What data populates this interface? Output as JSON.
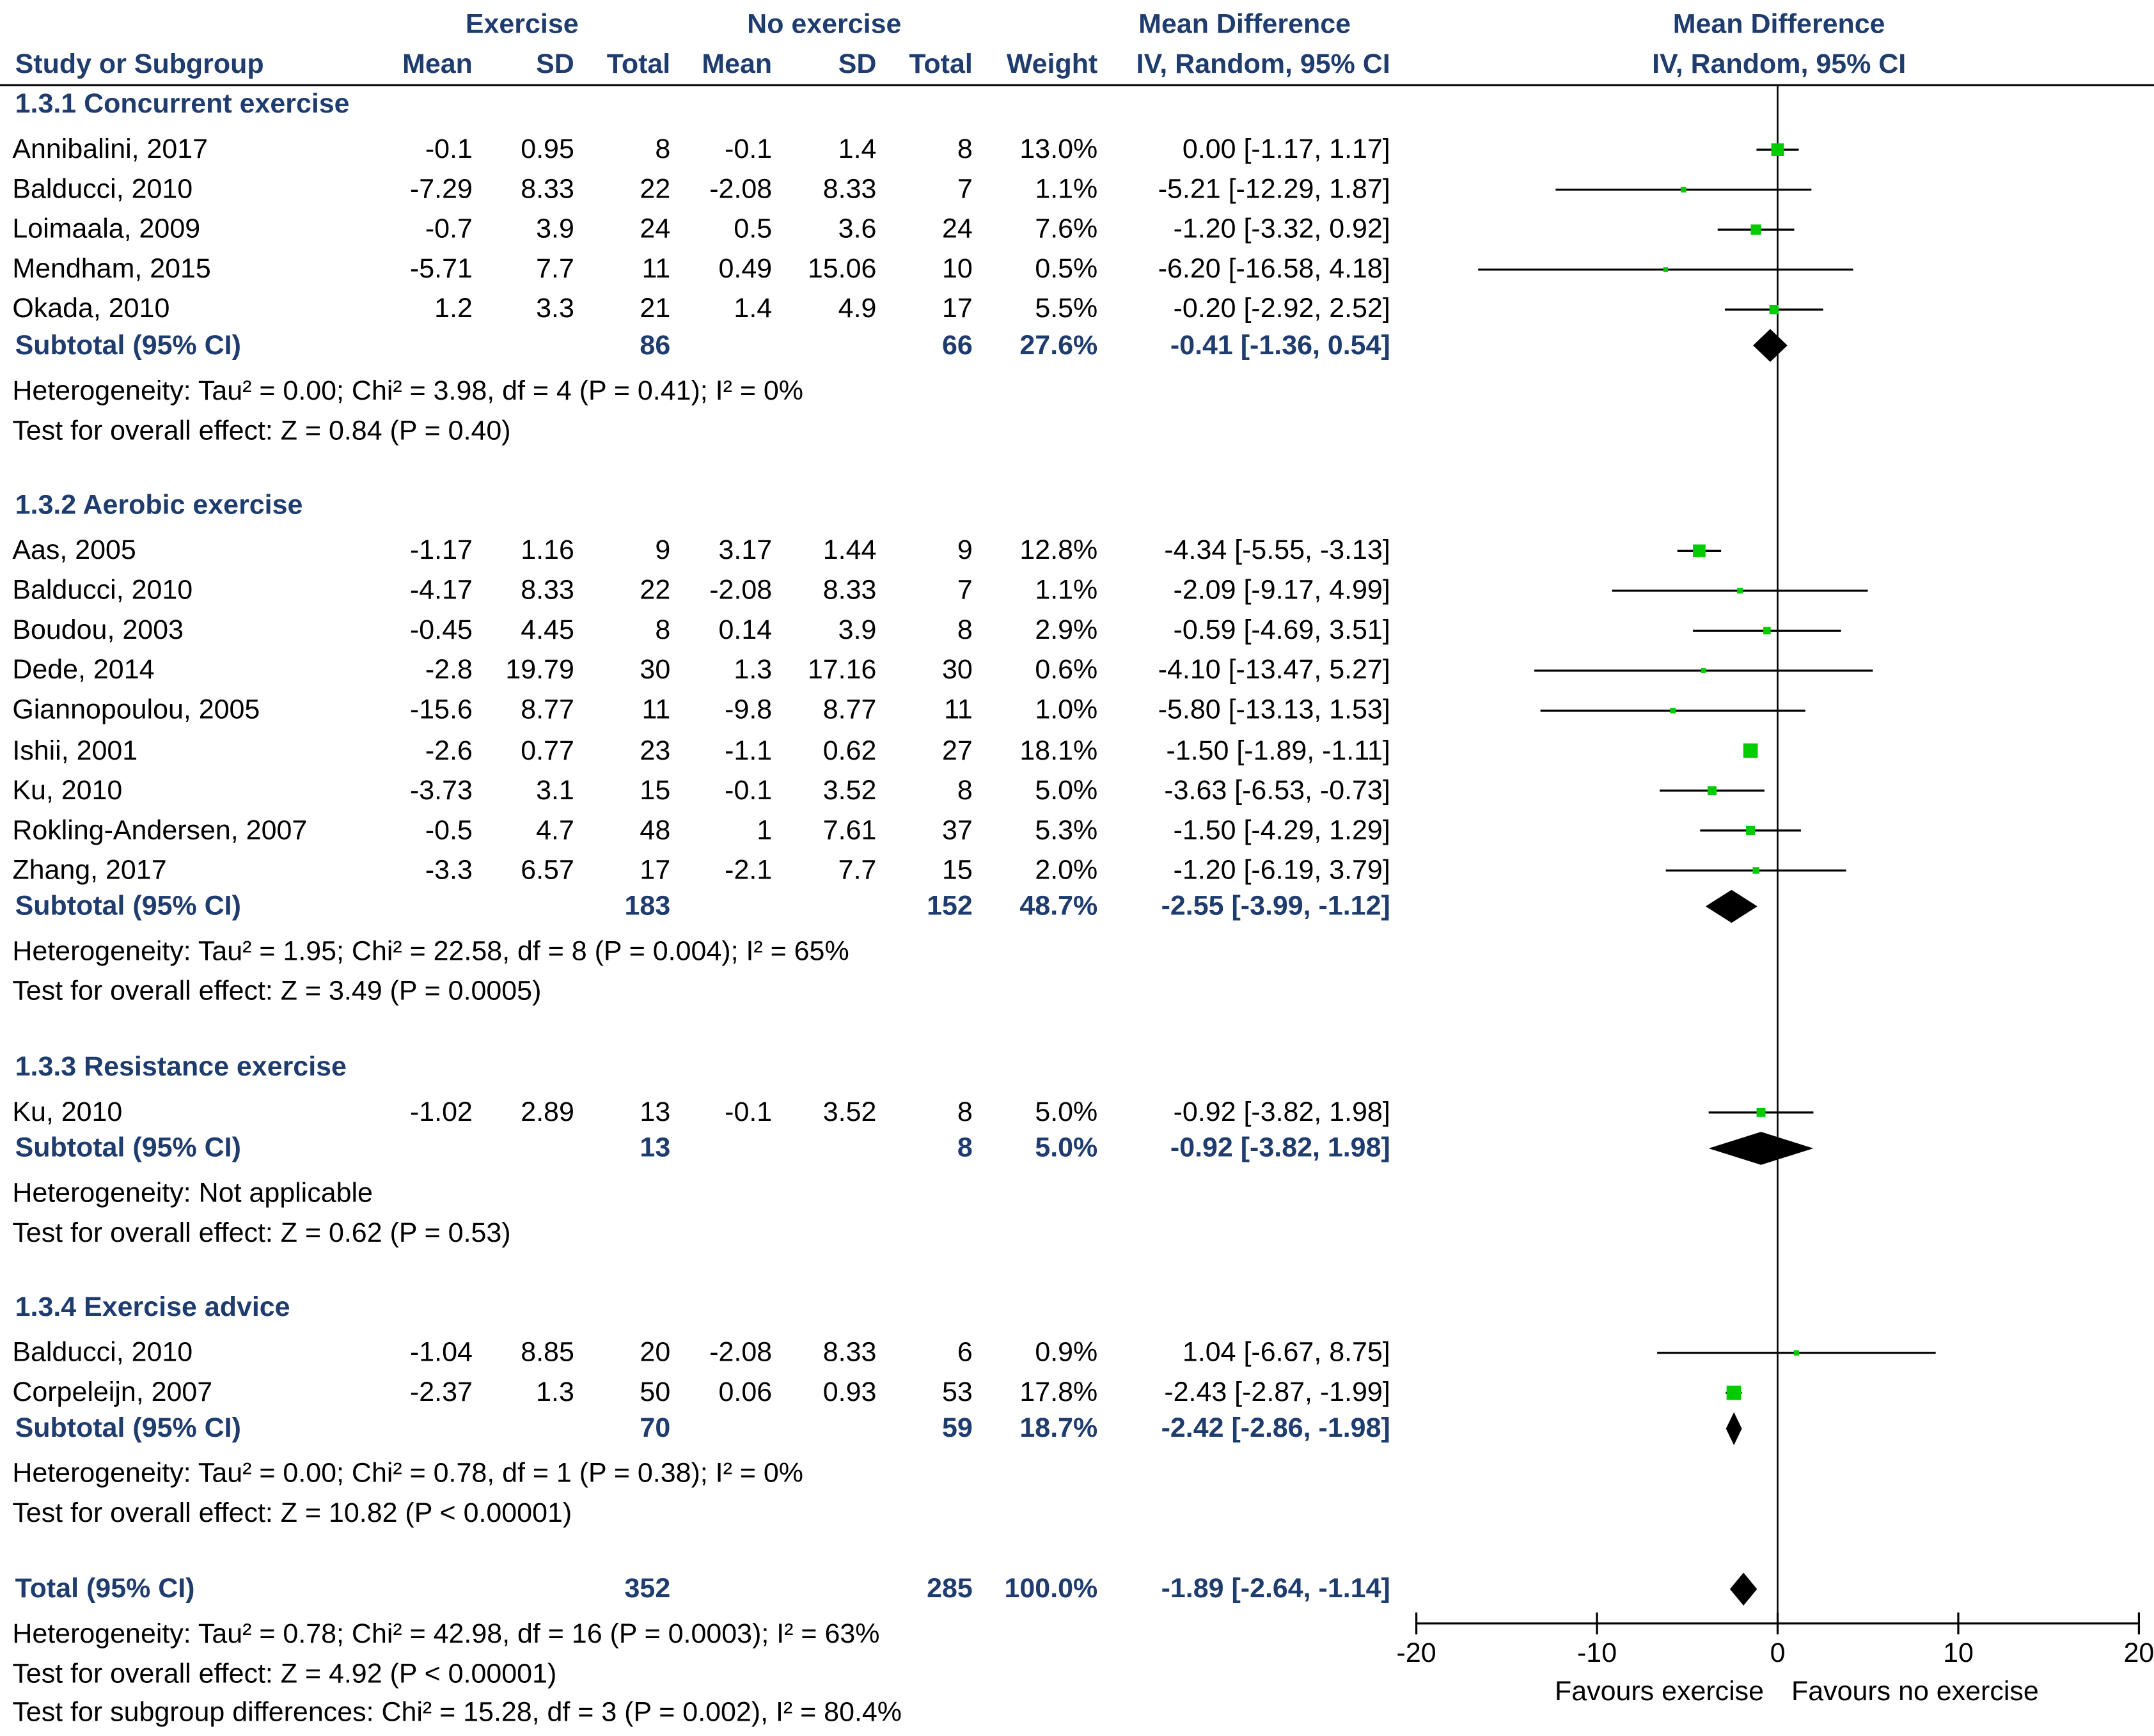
{
  "header": {
    "group1": "Exercise",
    "group2": "No exercise",
    "effect_title": "Mean Difference",
    "effect_subtitle": "IV, Random, 95% CI",
    "plot_title": "Mean Difference",
    "plot_subtitle": "IV, Random, 95% CI",
    "col_study": "Study or Subgroup",
    "col_mean1": "Mean",
    "col_sd1": "SD",
    "col_total1": "Total",
    "col_mean2": "Mean",
    "col_sd2": "SD",
    "col_total2": "Total",
    "col_weight": "Weight"
  },
  "subgroups": [
    {
      "title": "1.3.1 Concurrent exercise",
      "studies": [
        {
          "name": "Annibalini, 2017",
          "m1": "-0.1",
          "sd1": "0.95",
          "n1": "8",
          "m2": "-0.1",
          "sd2": "1.4",
          "n2": "8",
          "weight": "13.0%",
          "ci_text": "0.00 [-1.17, 1.17]"
        },
        {
          "name": "Balducci, 2010",
          "m1": "-7.29",
          "sd1": "8.33",
          "n1": "22",
          "m2": "-2.08",
          "sd2": "8.33",
          "n2": "7",
          "weight": "1.1%",
          "ci_text": "-5.21 [-12.29, 1.87]"
        },
        {
          "name": "Loimaala, 2009",
          "m1": "-0.7",
          "sd1": "3.9",
          "n1": "24",
          "m2": "0.5",
          "sd2": "3.6",
          "n2": "24",
          "weight": "7.6%",
          "ci_text": "-1.20 [-3.32, 0.92]"
        },
        {
          "name": "Mendham, 2015",
          "m1": "-5.71",
          "sd1": "7.7",
          "n1": "11",
          "m2": "0.49",
          "sd2": "15.06",
          "n2": "10",
          "weight": "0.5%",
          "ci_text": "-6.20 [-16.58, 4.18]"
        },
        {
          "name": "Okada, 2010",
          "m1": "1.2",
          "sd1": "3.3",
          "n1": "21",
          "m2": "1.4",
          "sd2": "4.9",
          "n2": "17",
          "weight": "5.5%",
          "ci_text": "-0.20 [-2.92, 2.52]"
        }
      ],
      "subtotal": {
        "label": "Subtotal (95% CI)",
        "n1": "86",
        "n2": "66",
        "weight": "27.6%",
        "ci_text": "-0.41 [-1.36, 0.54]"
      },
      "heterogeneity": "Heterogeneity: Tau² = 0.00; Chi² = 3.98, df = 4 (P = 0.41); I² = 0%",
      "overall": "Test for overall effect: Z = 0.84 (P = 0.40)"
    },
    {
      "title": "1.3.2 Aerobic exercise",
      "studies": [
        {
          "name": "Aas, 2005",
          "m1": "-1.17",
          "sd1": "1.16",
          "n1": "9",
          "m2": "3.17",
          "sd2": "1.44",
          "n2": "9",
          "weight": "12.8%",
          "ci_text": "-4.34 [-5.55, -3.13]"
        },
        {
          "name": "Balducci, 2010",
          "m1": "-4.17",
          "sd1": "8.33",
          "n1": "22",
          "m2": "-2.08",
          "sd2": "8.33",
          "n2": "7",
          "weight": "1.1%",
          "ci_text": "-2.09 [-9.17, 4.99]"
        },
        {
          "name": "Boudou, 2003",
          "m1": "-0.45",
          "sd1": "4.45",
          "n1": "8",
          "m2": "0.14",
          "sd2": "3.9",
          "n2": "8",
          "weight": "2.9%",
          "ci_text": "-0.59 [-4.69, 3.51]"
        },
        {
          "name": "Dede, 2014",
          "m1": "-2.8",
          "sd1": "19.79",
          "n1": "30",
          "m2": "1.3",
          "sd2": "17.16",
          "n2": "30",
          "weight": "0.6%",
          "ci_text": "-4.10 [-13.47, 5.27]"
        },
        {
          "name": "Giannopoulou, 2005",
          "m1": "-15.6",
          "sd1": "8.77",
          "n1": "11",
          "m2": "-9.8",
          "sd2": "8.77",
          "n2": "11",
          "weight": "1.0%",
          "ci_text": "-5.80 [-13.13, 1.53]"
        },
        {
          "name": "Ishii, 2001",
          "m1": "-2.6",
          "sd1": "0.77",
          "n1": "23",
          "m2": "-1.1",
          "sd2": "0.62",
          "n2": "27",
          "weight": "18.1%",
          "ci_text": "-1.50 [-1.89, -1.11]"
        },
        {
          "name": "Ku, 2010",
          "m1": "-3.73",
          "sd1": "3.1",
          "n1": "15",
          "m2": "-0.1",
          "sd2": "3.52",
          "n2": "8",
          "weight": "5.0%",
          "ci_text": "-3.63 [-6.53, -0.73]"
        },
        {
          "name": "Rokling-Andersen, 2007",
          "m1": "-0.5",
          "sd1": "4.7",
          "n1": "48",
          "m2": "1",
          "sd2": "7.61",
          "n2": "37",
          "weight": "5.3%",
          "ci_text": "-1.50 [-4.29, 1.29]"
        },
        {
          "name": "Zhang, 2017",
          "m1": "-3.3",
          "sd1": "6.57",
          "n1": "17",
          "m2": "-2.1",
          "sd2": "7.7",
          "n2": "15",
          "weight": "2.0%",
          "ci_text": "-1.20 [-6.19, 3.79]"
        }
      ],
      "subtotal": {
        "label": "Subtotal (95% CI)",
        "n1": "183",
        "n2": "152",
        "weight": "48.7%",
        "ci_text": "-2.55 [-3.99, -1.12]"
      },
      "heterogeneity": "Heterogeneity: Tau² = 1.95; Chi² = 22.58, df = 8 (P = 0.004); I² = 65%",
      "overall": "Test for overall effect: Z = 3.49 (P = 0.0005)"
    },
    {
      "title": "1.3.3 Resistance exercise",
      "studies": [
        {
          "name": "Ku, 2010",
          "m1": "-1.02",
          "sd1": "2.89",
          "n1": "13",
          "m2": "-0.1",
          "sd2": "3.52",
          "n2": "8",
          "weight": "5.0%",
          "ci_text": "-0.92 [-3.82, 1.98]"
        }
      ],
      "subtotal": {
        "label": "Subtotal (95% CI)",
        "n1": "13",
        "n2": "8",
        "weight": "5.0%",
        "ci_text": "-0.92 [-3.82, 1.98]"
      },
      "heterogeneity": "Heterogeneity: Not applicable",
      "overall": "Test for overall effect: Z = 0.62 (P = 0.53)"
    },
    {
      "title": "1.3.4 Exercise advice",
      "studies": [
        {
          "name": "Balducci, 2010",
          "m1": "-1.04",
          "sd1": "8.85",
          "n1": "20",
          "m2": "-2.08",
          "sd2": "8.33",
          "n2": "6",
          "weight": "0.9%",
          "ci_text": "1.04 [-6.67, 8.75]"
        },
        {
          "name": "Corpeleijn, 2007",
          "m1": "-2.37",
          "sd1": "1.3",
          "n1": "50",
          "m2": "0.06",
          "sd2": "0.93",
          "n2": "53",
          "weight": "17.8%",
          "ci_text": "-2.43 [-2.87, -1.99]"
        }
      ],
      "subtotal": {
        "label": "Subtotal (95% CI)",
        "n1": "70",
        "n2": "59",
        "weight": "18.7%",
        "ci_text": "-2.42 [-2.86, -1.98]"
      },
      "heterogeneity": "Heterogeneity: Tau² = 0.00; Chi² = 0.78, df = 1 (P = 0.38); I² = 0%",
      "overall": "Test for overall effect: Z = 10.82 (P < 0.00001)"
    }
  ],
  "total": {
    "label": "Total (95% CI)",
    "n1": "352",
    "n2": "285",
    "weight": "100.0%",
    "ci_text": "-1.89 [-2.64, -1.14]",
    "heterogeneity": "Heterogeneity: Tau² = 0.78; Chi² = 42.98, df = 16 (P = 0.0003); I² = 63%",
    "overall": "Test for overall effect: Z = 4.92 (P < 0.00001)",
    "subgroup_diff": "Test for subgroup differences: Chi² = 15.28, df = 3 (P = 0.002), I² = 80.4%"
  },
  "chart_data": {
    "type": "forest",
    "title": "Mean Difference, IV, Random, 95% CI",
    "xlim": [
      -20,
      20
    ],
    "xticks": [
      -20,
      -10,
      0,
      10,
      20
    ],
    "xtick_labels": [
      "-20",
      "-10",
      "0",
      "10",
      "20"
    ],
    "favours_left": "Favours exercise",
    "favours_right": "Favours no exercise",
    "colors": {
      "study_marker": "#00cc00",
      "summary": "#000000",
      "line": "#000000"
    },
    "studies": [
      {
        "subgroup": "1.3.1",
        "name": "Annibalini, 2017",
        "md": 0.0,
        "lo": -1.17,
        "hi": 1.17,
        "weight": 13.0
      },
      {
        "subgroup": "1.3.1",
        "name": "Balducci, 2010",
        "md": -5.21,
        "lo": -12.29,
        "hi": 1.87,
        "weight": 1.1
      },
      {
        "subgroup": "1.3.1",
        "name": "Loimaala, 2009",
        "md": -1.2,
        "lo": -3.32,
        "hi": 0.92,
        "weight": 7.6
      },
      {
        "subgroup": "1.3.1",
        "name": "Mendham, 2015",
        "md": -6.2,
        "lo": -16.58,
        "hi": 4.18,
        "weight": 0.5
      },
      {
        "subgroup": "1.3.1",
        "name": "Okada, 2010",
        "md": -0.2,
        "lo": -2.92,
        "hi": 2.52,
        "weight": 5.5
      },
      {
        "subgroup": "1.3.2",
        "name": "Aas, 2005",
        "md": -4.34,
        "lo": -5.55,
        "hi": -3.13,
        "weight": 12.8
      },
      {
        "subgroup": "1.3.2",
        "name": "Balducci, 2010",
        "md": -2.09,
        "lo": -9.17,
        "hi": 4.99,
        "weight": 1.1
      },
      {
        "subgroup": "1.3.2",
        "name": "Boudou, 2003",
        "md": -0.59,
        "lo": -4.69,
        "hi": 3.51,
        "weight": 2.9
      },
      {
        "subgroup": "1.3.2",
        "name": "Dede, 2014",
        "md": -4.1,
        "lo": -13.47,
        "hi": 5.27,
        "weight": 0.6
      },
      {
        "subgroup": "1.3.2",
        "name": "Giannopoulou, 2005",
        "md": -5.8,
        "lo": -13.13,
        "hi": 1.53,
        "weight": 1.0
      },
      {
        "subgroup": "1.3.2",
        "name": "Ishii, 2001",
        "md": -1.5,
        "lo": -1.89,
        "hi": -1.11,
        "weight": 18.1
      },
      {
        "subgroup": "1.3.2",
        "name": "Ku, 2010",
        "md": -3.63,
        "lo": -6.53,
        "hi": -0.73,
        "weight": 5.0
      },
      {
        "subgroup": "1.3.2",
        "name": "Rokling-Andersen, 2007",
        "md": -1.5,
        "lo": -4.29,
        "hi": 1.29,
        "weight": 5.3
      },
      {
        "subgroup": "1.3.2",
        "name": "Zhang, 2017",
        "md": -1.2,
        "lo": -6.19,
        "hi": 3.79,
        "weight": 2.0
      },
      {
        "subgroup": "1.3.3",
        "name": "Ku, 2010",
        "md": -0.92,
        "lo": -3.82,
        "hi": 1.98,
        "weight": 5.0
      },
      {
        "subgroup": "1.3.4",
        "name": "Balducci, 2010",
        "md": 1.04,
        "lo": -6.67,
        "hi": 8.75,
        "weight": 0.9
      },
      {
        "subgroup": "1.3.4",
        "name": "Corpeleijn, 2007",
        "md": -2.43,
        "lo": -2.87,
        "hi": -1.99,
        "weight": 17.8
      }
    ],
    "summaries": [
      {
        "label": "Subtotal 1.3.1",
        "md": -0.41,
        "lo": -1.36,
        "hi": 0.54
      },
      {
        "label": "Subtotal 1.3.2",
        "md": -2.55,
        "lo": -3.99,
        "hi": -1.12
      },
      {
        "label": "Subtotal 1.3.3",
        "md": -0.92,
        "lo": -3.82,
        "hi": 1.98
      },
      {
        "label": "Subtotal 1.3.4",
        "md": -2.42,
        "lo": -2.86,
        "hi": -1.98
      },
      {
        "label": "Total",
        "md": -1.89,
        "lo": -2.64,
        "hi": -1.14
      }
    ]
  }
}
